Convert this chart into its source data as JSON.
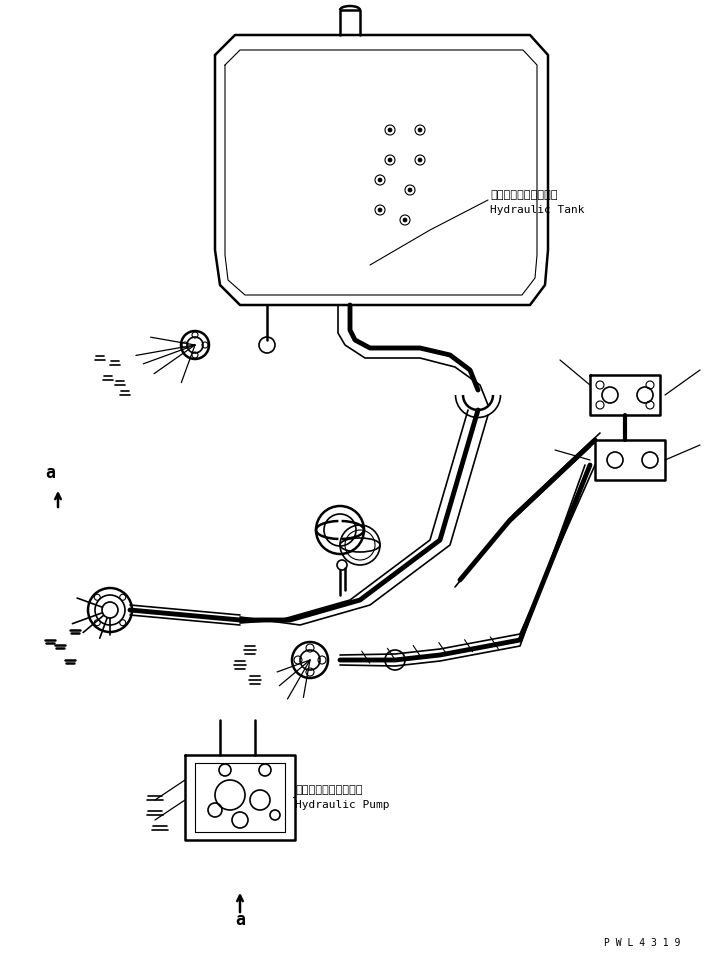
{
  "bg_color": "#ffffff",
  "line_color": "#000000",
  "line_width": 1.2,
  "fig_width": 7.22,
  "fig_height": 9.57,
  "dpi": 100,
  "label_tank_jp": "ハイドロリックタンク",
  "label_tank_en": "Hydraulic Tank",
  "label_pump_jp": "ハイドロリックポンプ",
  "label_pump_en": "Hydraulic Pump",
  "label_a_top": "a",
  "label_a_bottom": "a",
  "watermark": "P W L 4 3 1 9",
  "font_size_label": 8,
  "font_size_wm": 7
}
